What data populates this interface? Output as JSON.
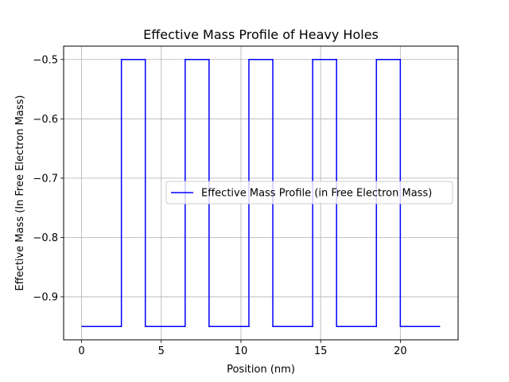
{
  "chart_data": {
    "type": "line",
    "title": "Effective Mass Profile of Heavy Holes",
    "xlabel": "Position (nm)",
    "ylabel": "Effective Mass (In Free Electron Mass)",
    "xlim": [
      -1.125,
      23.625
    ],
    "ylim": [
      -0.9725,
      -0.4775
    ],
    "xticks": [
      0,
      5,
      10,
      15,
      20
    ],
    "xtick_labels": [
      "0",
      "5",
      "10",
      "15",
      "20"
    ],
    "yticks": [
      -0.5,
      -0.6,
      -0.7,
      -0.8,
      -0.9
    ],
    "ytick_labels": [
      "−0.5",
      "−0.6",
      "−0.7",
      "−0.8",
      "−0.9"
    ],
    "grid": true,
    "legend_position": "center-right",
    "series": [
      {
        "name": "Effective Mass Profile (in Free Electron Mass)",
        "color": "#0000ff",
        "step": true,
        "x": [
          0,
          2.5,
          2.5,
          4,
          4,
          6.5,
          6.5,
          8,
          8,
          10.5,
          10.5,
          12,
          12,
          14.5,
          14.5,
          16,
          16,
          18.5,
          18.5,
          20,
          20,
          22.5
        ],
        "y": [
          -0.95,
          -0.95,
          -0.5,
          -0.5,
          -0.95,
          -0.95,
          -0.5,
          -0.5,
          -0.95,
          -0.95,
          -0.5,
          -0.5,
          -0.95,
          -0.95,
          -0.5,
          -0.5,
          -0.95,
          -0.95,
          -0.5,
          -0.5,
          -0.95,
          -0.95
        ]
      }
    ]
  }
}
